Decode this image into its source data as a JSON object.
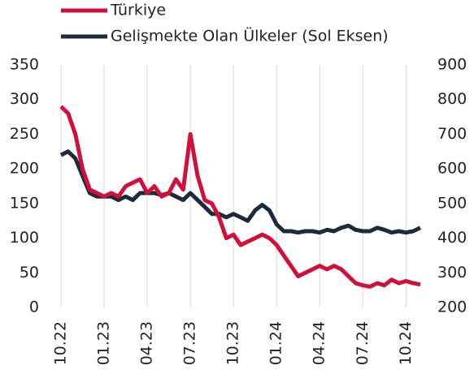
{
  "chart_data": {
    "type": "line",
    "categories": [
      "10.22",
      null,
      null,
      null,
      null,
      null,
      "01.23",
      null,
      null,
      null,
      null,
      null,
      "04.23",
      null,
      null,
      null,
      null,
      null,
      "07.23",
      null,
      null,
      null,
      null,
      null,
      "10.23",
      null,
      null,
      null,
      null,
      null,
      "01.24",
      null,
      null,
      null,
      null,
      null,
      "04.24",
      null,
      null,
      null,
      null,
      null,
      "07.24",
      null,
      null,
      null,
      null,
      null,
      "10.24",
      null,
      null
    ],
    "series": [
      {
        "name": "Türkiye",
        "color": "#d0103a",
        "axis": "y2",
        "values": [
          780,
          760,
          700,
          600,
          540,
          530,
          520,
          530,
          520,
          550,
          560,
          570,
          530,
          550,
          520,
          530,
          570,
          540,
          700,
          580,
          510,
          500,
          460,
          400,
          410,
          380,
          390,
          400,
          410,
          400,
          380,
          350,
          320,
          290,
          300,
          310,
          320,
          310,
          320,
          310,
          290,
          270,
          264,
          260,
          270,
          264,
          280,
          270,
          276,
          270,
          266
        ]
      },
      {
        "name": "Gelişmekte Olan Ülkeler (Sol Eksen)",
        "color": "#1e2a3a",
        "axis": "y",
        "values": [
          220,
          225,
          215,
          190,
          165,
          160,
          160,
          160,
          155,
          160,
          155,
          165,
          165,
          165,
          162,
          165,
          160,
          155,
          165,
          155,
          145,
          135,
          135,
          130,
          135,
          130,
          125,
          140,
          148,
          140,
          120,
          110,
          110,
          108,
          110,
          110,
          108,
          112,
          110,
          115,
          118,
          112,
          110,
          110,
          115,
          112,
          108,
          110,
          108,
          110,
          115
        ]
      }
    ],
    "ylim": [
      0,
      350
    ],
    "yticks": [
      0,
      50,
      100,
      150,
      200,
      250,
      300,
      350
    ],
    "y2lim": [
      200,
      900
    ],
    "y2ticks": [
      200,
      300,
      400,
      500,
      600,
      700,
      800,
      900
    ],
    "grid": "x",
    "legend": "top"
  }
}
